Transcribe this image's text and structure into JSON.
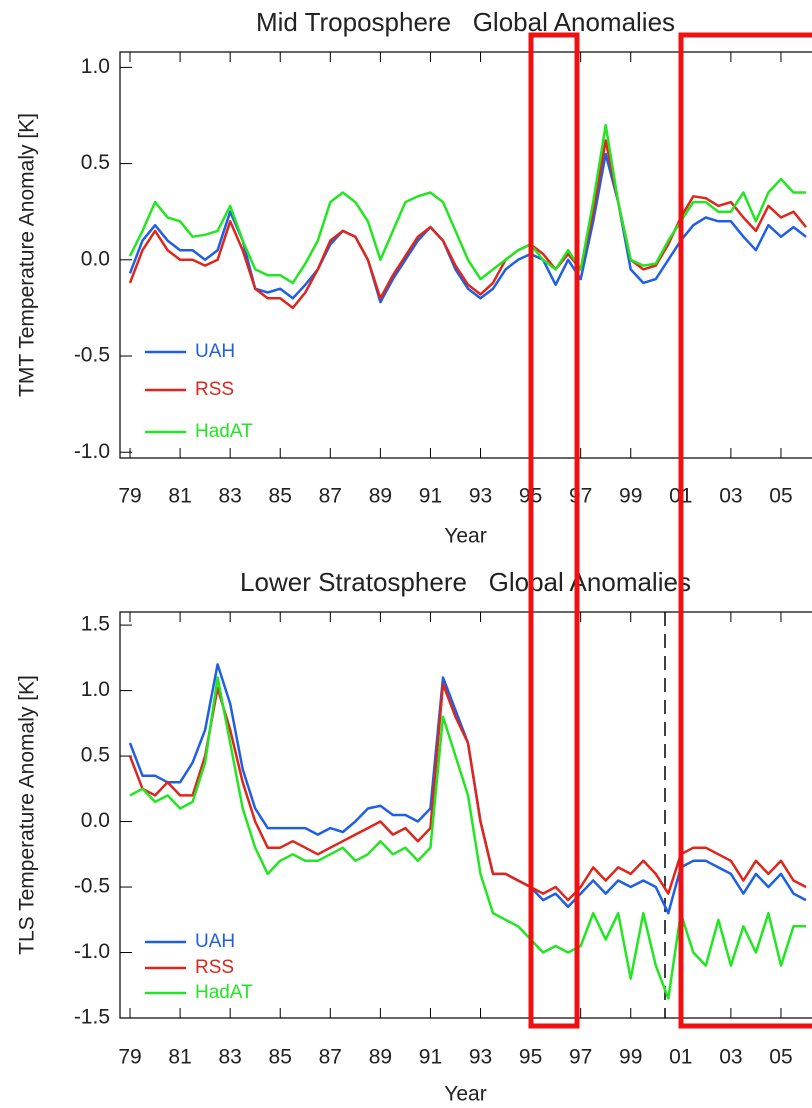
{
  "chart_data": [
    {
      "type": "line",
      "title": "Mid Troposphere   Global Anomalies",
      "xlabel": "Year",
      "ylabel": "TMT Temperature Anomaly [K]",
      "x": [
        1979,
        1979.5,
        1980,
        1980.5,
        1981,
        1981.5,
        1982,
        1982.5,
        1983,
        1983.5,
        1984,
        1984.5,
        1985,
        1985.5,
        1986,
        1986.5,
        1987,
        1987.5,
        1988,
        1988.5,
        1989,
        1989.5,
        1990,
        1990.5,
        1991,
        1991.5,
        1992,
        1992.5,
        1993,
        1993.5,
        1994,
        1994.5,
        1995,
        1995.5,
        1996,
        1996.5,
        1997,
        1997.5,
        1998,
        1998.5,
        1999,
        1999.5,
        2000,
        2000.5,
        2001,
        2001.5,
        2002,
        2002.5,
        2003,
        2003.5,
        2004,
        2004.5,
        2005,
        2005.5,
        2006
      ],
      "series": [
        {
          "name": "UAH",
          "color": "#1f5fe6",
          "values": [
            -0.07,
            0.1,
            0.18,
            0.1,
            0.05,
            0.05,
            0.0,
            0.05,
            0.25,
            0.1,
            -0.15,
            -0.17,
            -0.15,
            -0.2,
            -0.13,
            -0.05,
            0.08,
            0.15,
            0.12,
            0.0,
            -0.22,
            -0.1,
            0.0,
            0.1,
            0.17,
            0.1,
            -0.05,
            -0.15,
            -0.2,
            -0.15,
            -0.05,
            0.0,
            0.03,
            0.0,
            -0.13,
            0.0,
            -0.1,
            0.2,
            0.55,
            0.3,
            -0.05,
            -0.12,
            -0.1,
            0.0,
            0.1,
            0.18,
            0.22,
            0.2,
            0.2,
            0.12,
            0.05,
            0.18,
            0.12,
            0.17,
            0.12
          ]
        },
        {
          "name": "RSS",
          "color": "#e0261b",
          "values": [
            -0.12,
            0.05,
            0.15,
            0.05,
            0.0,
            0.0,
            -0.03,
            0.0,
            0.2,
            0.05,
            -0.15,
            -0.2,
            -0.2,
            -0.25,
            -0.17,
            -0.05,
            0.1,
            0.15,
            0.12,
            0.0,
            -0.2,
            -0.08,
            0.02,
            0.12,
            0.17,
            0.1,
            -0.03,
            -0.13,
            -0.18,
            -0.12,
            0.0,
            0.05,
            0.08,
            0.03,
            -0.05,
            0.03,
            -0.05,
            0.25,
            0.62,
            0.3,
            0.0,
            -0.05,
            -0.03,
            0.08,
            0.22,
            0.33,
            0.32,
            0.28,
            0.3,
            0.22,
            0.15,
            0.28,
            0.22,
            0.25,
            0.17
          ]
        },
        {
          "name": "HadAT",
          "color": "#22e622",
          "values": [
            0.02,
            0.15,
            0.3,
            0.22,
            0.2,
            0.12,
            0.13,
            0.15,
            0.28,
            0.1,
            -0.05,
            -0.08,
            -0.08,
            -0.12,
            -0.02,
            0.1,
            0.3,
            0.35,
            0.3,
            0.2,
            0.0,
            0.15,
            0.3,
            0.33,
            0.35,
            0.3,
            0.15,
            0.0,
            -0.1,
            -0.05,
            0.0,
            0.05,
            0.08,
            0.0,
            -0.05,
            0.05,
            -0.05,
            0.3,
            0.7,
            0.3,
            0.0,
            -0.03,
            -0.02,
            0.1,
            0.2,
            0.3,
            0.3,
            0.25,
            0.25,
            0.35,
            0.2,
            0.35,
            0.42,
            0.35,
            0.35
          ]
        }
      ],
      "xlim": [
        1978.6,
        2006.2
      ],
      "ylim": [
        -1.03,
        1.08
      ],
      "xticks": [
        {
          "value": 1979,
          "label": "79"
        },
        {
          "value": 1981,
          "label": "81"
        },
        {
          "value": 1983,
          "label": "83"
        },
        {
          "value": 1985,
          "label": "85"
        },
        {
          "value": 1987,
          "label": "87"
        },
        {
          "value": 1989,
          "label": "89"
        },
        {
          "value": 1991,
          "label": "91"
        },
        {
          "value": 1993,
          "label": "93"
        },
        {
          "value": 1995,
          "label": "95"
        },
        {
          "value": 1997,
          "label": "97"
        },
        {
          "value": 1999,
          "label": "99"
        },
        {
          "value": 2001,
          "label": "01"
        },
        {
          "value": 2003,
          "label": "03"
        },
        {
          "value": 2005,
          "label": "05"
        }
      ],
      "yticks": [
        {
          "value": 1,
          "label": "1.0"
        },
        0.5,
        {
          "value": 0,
          "label": "0.0"
        },
        -0.5,
        {
          "value": -1,
          "label": "-1.0"
        }
      ]
    },
    {
      "type": "line",
      "title": "Lower Stratosphere   Global Anomalies",
      "xlabel": "Year",
      "ylabel": "TLS Temperature Anomaly [K]",
      "x": [
        1979,
        1979.5,
        1980,
        1980.5,
        1981,
        1981.5,
        1982,
        1982.5,
        1983,
        1983.5,
        1984,
        1984.5,
        1985,
        1985.5,
        1986,
        1986.5,
        1987,
        1987.5,
        1988,
        1988.5,
        1989,
        1989.5,
        1990,
        1990.5,
        1991,
        1991.5,
        1992,
        1992.5,
        1993,
        1993.5,
        1994,
        1994.5,
        1995,
        1995.5,
        1996,
        1996.5,
        1997,
        1997.5,
        1998,
        1998.5,
        1999,
        1999.5,
        2000,
        2000.5,
        2001,
        2001.5,
        2002,
        2002.5,
        2003,
        2003.5,
        2004,
        2004.5,
        2005,
        2005.5,
        2006
      ],
      "series": [
        {
          "name": "UAH",
          "color": "#1f5fe6",
          "values": [
            0.6,
            0.35,
            0.35,
            0.3,
            0.3,
            0.45,
            0.7,
            1.2,
            0.9,
            0.4,
            0.1,
            -0.05,
            -0.05,
            -0.05,
            -0.05,
            -0.1,
            -0.05,
            -0.08,
            0.0,
            0.1,
            0.12,
            0.05,
            0.05,
            0.0,
            0.1,
            1.1,
            0.85,
            0.6,
            0.0,
            -0.4,
            -0.4,
            -0.45,
            -0.5,
            -0.6,
            -0.55,
            -0.65,
            -0.55,
            -0.45,
            -0.55,
            -0.45,
            -0.5,
            -0.45,
            -0.5,
            -0.7,
            -0.35,
            -0.3,
            -0.3,
            -0.35,
            -0.4,
            -0.55,
            -0.4,
            -0.5,
            -0.4,
            -0.55,
            -0.6
          ]
        },
        {
          "name": "RSS",
          "color": "#e0261b",
          "values": [
            0.5,
            0.25,
            0.2,
            0.3,
            0.2,
            0.2,
            0.5,
            1.02,
            0.7,
            0.3,
            0.0,
            -0.2,
            -0.2,
            -0.15,
            -0.2,
            -0.25,
            -0.2,
            -0.15,
            -0.1,
            -0.05,
            0.0,
            -0.1,
            -0.05,
            -0.15,
            -0.05,
            1.05,
            0.8,
            0.6,
            0.0,
            -0.4,
            -0.4,
            -0.45,
            -0.5,
            -0.55,
            -0.5,
            -0.6,
            -0.5,
            -0.35,
            -0.45,
            -0.35,
            -0.4,
            -0.3,
            -0.4,
            -0.55,
            -0.25,
            -0.2,
            -0.2,
            -0.25,
            -0.3,
            -0.45,
            -0.3,
            -0.4,
            -0.3,
            -0.45,
            -0.5
          ]
        },
        {
          "name": "HadAT",
          "color": "#22e622",
          "values": [
            0.2,
            0.25,
            0.15,
            0.2,
            0.1,
            0.15,
            0.45,
            1.1,
            0.6,
            0.1,
            -0.2,
            -0.4,
            -0.3,
            -0.25,
            -0.3,
            -0.3,
            -0.25,
            -0.2,
            -0.3,
            -0.25,
            -0.15,
            -0.25,
            -0.2,
            -0.3,
            -0.2,
            0.8,
            0.5,
            0.2,
            -0.4,
            -0.7,
            -0.75,
            -0.8,
            -0.9,
            -1.0,
            -0.95,
            -1.0,
            -0.95,
            -0.7,
            -0.9,
            -0.7,
            -1.2,
            -0.7,
            -1.1,
            -1.35,
            -0.7,
            -1.0,
            -1.1,
            -0.75,
            -1.1,
            -0.8,
            -1.0,
            -0.7,
            -1.1,
            -0.8,
            -0.8
          ]
        }
      ],
      "xlim": [
        1978.6,
        2006.2
      ],
      "ylim": [
        -1.5,
        1.6
      ],
      "xticks": [
        {
          "value": 1979,
          "label": "79"
        },
        {
          "value": 1981,
          "label": "81"
        },
        {
          "value": 1983,
          "label": "83"
        },
        {
          "value": 1985,
          "label": "85"
        },
        {
          "value": 1987,
          "label": "87"
        },
        {
          "value": 1989,
          "label": "89"
        },
        {
          "value": 1991,
          "label": "91"
        },
        {
          "value": 1993,
          "label": "93"
        },
        {
          "value": 1995,
          "label": "95"
        },
        {
          "value": 1997,
          "label": "97"
        },
        {
          "value": 1999,
          "label": "99"
        },
        {
          "value": 2001,
          "label": "01"
        },
        {
          "value": 2003,
          "label": "03"
        },
        {
          "value": 2005,
          "label": "05"
        }
      ],
      "yticks": [
        1.5,
        {
          "value": 1,
          "label": "1.0"
        },
        0.5,
        {
          "value": 0,
          "label": "0.0"
        },
        -0.5,
        {
          "value": -1,
          "label": "-1.0"
        },
        -1.5
      ]
    }
  ]
}
